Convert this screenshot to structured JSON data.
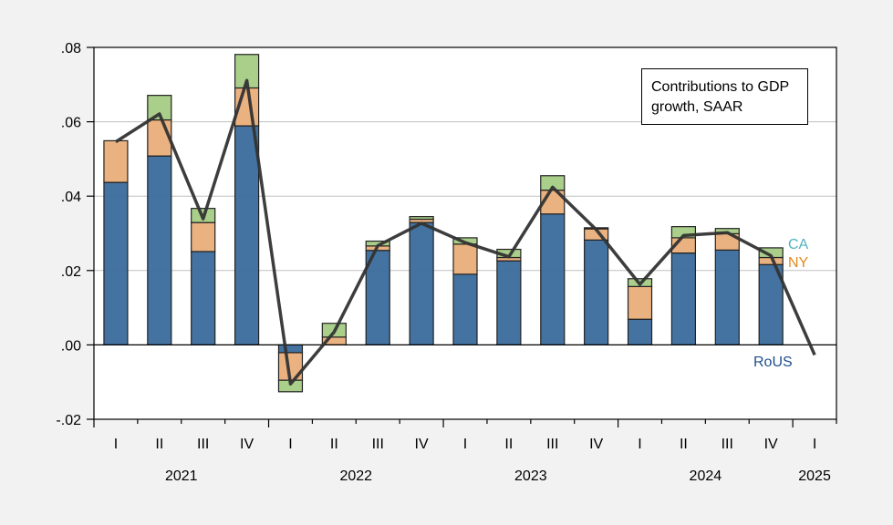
{
  "chart_data": {
    "type": "bar",
    "stacked": true,
    "title": "Contributions to GDP growth, SAAR",
    "xlabel": "",
    "ylabel": "",
    "ylim": [
      -0.02,
      0.08
    ],
    "yticks": [
      -0.02,
      0.0,
      0.02,
      0.04,
      0.06,
      0.08
    ],
    "ytick_labels": [
      "-.02",
      ".00",
      ".02",
      ".04",
      ".06",
      ".08"
    ],
    "grid": true,
    "legend_placement": "top-right",
    "categories": [
      "2021Q1",
      "2021Q2",
      "2021Q3",
      "2021Q4",
      "2022Q1",
      "2022Q2",
      "2022Q3",
      "2022Q4",
      "2023Q1",
      "2023Q2",
      "2023Q3",
      "2023Q4",
      "2024Q1",
      "2024Q2",
      "2024Q3",
      "2024Q4",
      "2025Q1"
    ],
    "quarter_labels": [
      "I",
      "II",
      "III",
      "IV",
      "I",
      "II",
      "III",
      "IV",
      "I",
      "II",
      "III",
      "IV",
      "I",
      "II",
      "III",
      "IV",
      "I"
    ],
    "year_labels": [
      "2021",
      "2022",
      "2023",
      "2024",
      "2025"
    ],
    "series": [
      {
        "name": "RoUS",
        "color": "#3e6e9e",
        "values": [
          0.0437,
          0.0508,
          0.0251,
          0.0589,
          -0.0021,
          0.0,
          0.0254,
          0.0329,
          0.019,
          0.0226,
          0.0352,
          0.0282,
          0.0069,
          0.0247,
          0.0255,
          0.0216,
          null
        ]
      },
      {
        "name": "NY",
        "color": "#e9b07c",
        "values": [
          0.0112,
          0.0097,
          0.0078,
          0.0102,
          -0.0074,
          0.0021,
          0.0012,
          0.0009,
          0.0081,
          0.0009,
          0.0064,
          0.003,
          0.0088,
          0.0041,
          0.0044,
          0.0019,
          null
        ]
      },
      {
        "name": "CA",
        "color": "#a7cd87",
        "values": [
          0.0,
          0.0066,
          0.0038,
          0.009,
          -0.0031,
          0.0037,
          0.0013,
          0.0007,
          0.0017,
          0.0022,
          0.0039,
          0.0003,
          0.0021,
          0.003,
          0.0014,
          0.0026,
          null
        ]
      }
    ],
    "line": {
      "name": "GDP growth",
      "color": "#333333",
      "values": [
        0.0546,
        0.0621,
        0.0339,
        0.0711,
        -0.0105,
        0.0035,
        0.0267,
        0.0327,
        0.0275,
        0.0237,
        0.0424,
        0.031,
        0.0163,
        0.0294,
        0.0302,
        0.024,
        -0.0027
      ]
    },
    "series_labels": [
      {
        "text": "CA",
        "color": "#4fb3bf"
      },
      {
        "text": "NY",
        "color": "#e08a1e"
      },
      {
        "text": "RoUS",
        "color": "#1f4e8c"
      }
    ]
  }
}
